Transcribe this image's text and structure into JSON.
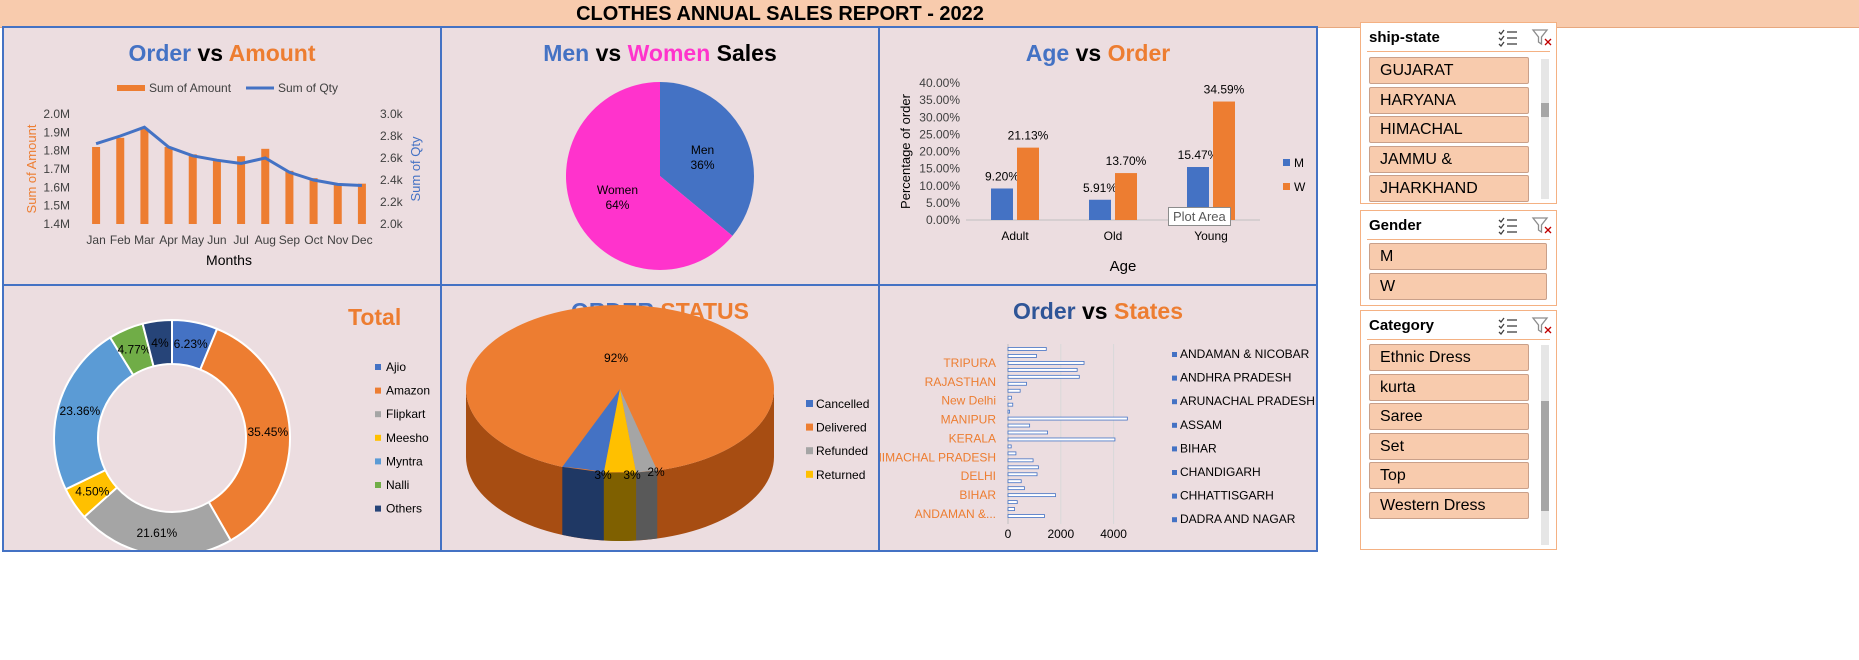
{
  "report_title": "CLOTHES ANNUAL SALES REPORT - 2022",
  "panels": {
    "order_amount": {
      "title_a": "Order",
      "title_vs": " vs ",
      "title_b": "Amount"
    },
    "gender_sales": {
      "title_a": "Men",
      "title_vs": " vs ",
      "title_b": "Women",
      "title_c": " Sales"
    },
    "age_order": {
      "title_a": "Age",
      "title_vs": " vs ",
      "title_b": "Order",
      "tooltip": "Plot Area"
    },
    "total": {
      "title": "Total"
    },
    "order_status": {
      "title_a": "ORDER",
      "title_b": "STATUS"
    },
    "order_states": {
      "title_a": "Order",
      "title_vs": " vs ",
      "title_b": "States"
    }
  },
  "chart_data": [
    {
      "type": "line",
      "title": "Order vs Amount",
      "xlabel": "Months",
      "ylabel": "Sum of Amount",
      "y2label": "Sum of Qty",
      "categories": [
        "Jan",
        "Feb",
        "Mar",
        "Apr",
        "May",
        "Jun",
        "Jul",
        "Aug",
        "Sep",
        "Oct",
        "Nov",
        "Dec"
      ],
      "series": [
        {
          "name": "Sum of Amount",
          "kind": "bar",
          "axis": "left",
          "color": "#ed7d31",
          "values": [
            1.82,
            1.87,
            1.92,
            1.82,
            1.78,
            1.75,
            1.77,
            1.81,
            1.69,
            1.65,
            1.62,
            1.62
          ]
        },
        {
          "name": "Sum of Qty",
          "kind": "line",
          "axis": "right",
          "color": "#4472c4",
          "values": [
            2.73,
            2.8,
            2.88,
            2.7,
            2.62,
            2.58,
            2.55,
            2.6,
            2.47,
            2.4,
            2.36,
            2.35
          ]
        }
      ],
      "ylim": [
        1.4,
        2.0
      ],
      "y_ticks": [
        "1.4M",
        "1.5M",
        "1.6M",
        "1.7M",
        "1.8M",
        "1.9M",
        "2.0M"
      ],
      "y2lim": [
        2.0,
        3.0
      ],
      "y2_ticks": [
        "2.0k",
        "2.2k",
        "2.4k",
        "2.6k",
        "2.8k",
        "3.0k"
      ],
      "legend": "top"
    },
    {
      "type": "pie",
      "title": "Men vs Women Sales",
      "slices": [
        {
          "label": "Men",
          "value": 36,
          "text": "36%",
          "color": "#4472c4"
        },
        {
          "label": "Women",
          "value": 64,
          "text": "64%",
          "color": "#ff33cc"
        }
      ]
    },
    {
      "type": "bar",
      "title": "Age vs Order",
      "xlabel": "Age",
      "ylabel": "Percentage of order",
      "categories": [
        "Adult",
        "Old",
        "Young"
      ],
      "series": [
        {
          "name": "M",
          "color": "#4472c4",
          "values": [
            9.2,
            5.91,
            15.47
          ],
          "labels": [
            "9.20%",
            "5.91%",
            "15.47%"
          ]
        },
        {
          "name": "W",
          "color": "#ed7d31",
          "values": [
            21.13,
            13.7,
            34.59
          ],
          "labels": [
            "21.13%",
            "13.70%",
            "34.59%"
          ]
        }
      ],
      "ylim": [
        0,
        40
      ],
      "y_ticks": [
        "0.00%",
        "5.00%",
        "10.00%",
        "15.00%",
        "20.00%",
        "25.00%",
        "30.00%",
        "35.00%",
        "40.00%"
      ],
      "legend": "right"
    },
    {
      "type": "pie",
      "subtype": "donut",
      "title": "Total",
      "slices": [
        {
          "label": "Ajio",
          "value": 6.23,
          "text": "6.23%",
          "color": "#4472c4"
        },
        {
          "label": "Amazon",
          "value": 35.45,
          "text": "35.45%",
          "color": "#ed7d31"
        },
        {
          "label": "Flipkart",
          "value": 21.61,
          "text": "21.61%",
          "color": "#a5a5a5"
        },
        {
          "label": "Meesho",
          "value": 4.5,
          "text": "4.50%",
          "color": "#ffc000"
        },
        {
          "label": "Myntra",
          "value": 23.36,
          "text": "23.36%",
          "color": "#5b9bd5"
        },
        {
          "label": "Nalli",
          "value": 4.77,
          "text": "4.77%",
          "color": "#70ad47"
        },
        {
          "label": "Others",
          "value": 4,
          "text": "4%",
          "color": "#264478"
        }
      ],
      "legend": "right"
    },
    {
      "type": "pie",
      "subtype": "3d",
      "title": "ORDER STATUS",
      "slices": [
        {
          "label": "Cancelled",
          "value": 3,
          "text": "3%",
          "color": "#4472c4"
        },
        {
          "label": "Delivered",
          "value": 92,
          "text": "92%",
          "color": "#ed7d31"
        },
        {
          "label": "Refunded",
          "value": 2,
          "text": "2%",
          "color": "#a5a5a5"
        },
        {
          "label": "Returned",
          "value": 3,
          "text": "3%",
          "color": "#ffc000"
        }
      ],
      "legend": "right"
    },
    {
      "type": "bar",
      "orientation": "horizontal",
      "title": "Order vs States",
      "y_labels_visible": [
        "ANDAMAN &...",
        "BIHAR",
        "DELHI",
        "HIMACHAL PRADESH",
        "KERALA",
        "MANIPUR",
        "New Delhi",
        "RAJASTHAN",
        "TRIPURA"
      ],
      "x_ticks": [
        "0",
        "2000",
        "4000"
      ],
      "xlim": [
        0,
        5000
      ],
      "bar_values": [
        1380,
        250,
        350,
        1800,
        620,
        500,
        1100,
        1150,
        950,
        300,
        120,
        4050,
        1500,
        820,
        4520,
        60,
        180,
        130,
        460,
        700,
        2700,
        2620,
        2880,
        1080,
        1450
      ],
      "legend_series": [
        "ANDAMAN & NICOBAR",
        "ANDHRA PRADESH",
        "ARUNACHAL PRADESH",
        "ASSAM",
        "BIHAR",
        "CHANDIGARH",
        "CHHATTISGARH",
        "DADRA AND NAGAR"
      ],
      "legend": "right"
    }
  ],
  "slicers": {
    "ship_state": {
      "header": "ship-state",
      "items": [
        "GUJARAT",
        "HARYANA",
        "HIMACHAL PRADESH",
        "JAMMU & KASHMIR",
        "JHARKHAND"
      ]
    },
    "gender": {
      "header": "Gender",
      "items": [
        "M",
        "W"
      ]
    },
    "category": {
      "header": "Category",
      "items": [
        "Ethnic Dress",
        "kurta",
        "Saree",
        "Set",
        "Top",
        "Western Dress"
      ]
    }
  },
  "icons": [
    "multi-select-icon",
    "clear-filter-icon"
  ]
}
